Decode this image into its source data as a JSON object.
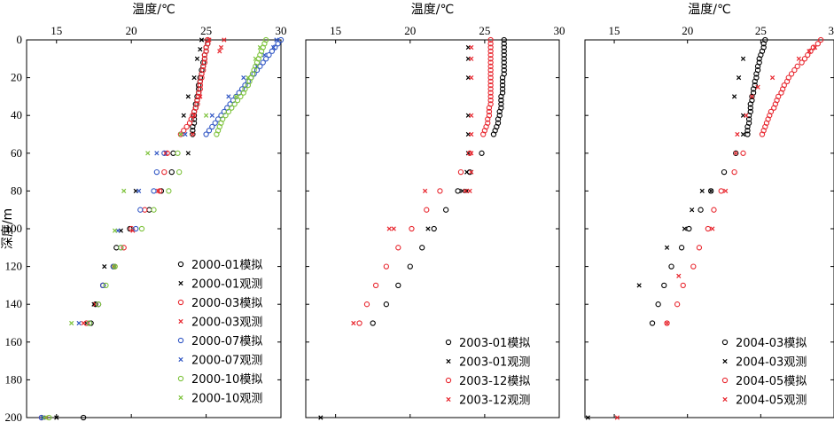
{
  "chart_data": [
    {
      "type": "scatter",
      "xlabel": "温度/℃",
      "ylabel": "深度/m",
      "xlim": [
        13,
        30
      ],
      "ylim": [
        0,
        200
      ],
      "y_reversed": true,
      "x_ticks": [
        "15",
        "20",
        "25",
        "30"
      ],
      "y_ticks": [
        "0",
        "20",
        "40",
        "60",
        "80",
        "100",
        "120",
        "140",
        "160",
        "180",
        "200"
      ],
      "legend_position": "bottom-right",
      "series": [
        {
          "name": "2000-01模拟",
          "marker": "circle",
          "color": "#000000",
          "x": [
            25.1,
            25.1,
            25.0,
            25.0,
            24.9,
            24.9,
            24.8,
            24.8,
            24.7,
            24.7,
            24.6,
            24.6,
            24.5,
            24.5,
            24.5,
            24.4,
            24.4,
            24.3,
            24.3,
            24.2,
            24.2,
            24.2,
            24.2,
            24.1,
            24.1,
            24.1,
            22.8,
            22.7,
            22.0,
            21.2,
            19.9,
            19.0,
            18.8,
            18.1,
            17.6,
            17.3,
            16.8
          ],
          "y": [
            0,
            2,
            4,
            6,
            8,
            10,
            12,
            14,
            16,
            18,
            20,
            22,
            24,
            26,
            28,
            30,
            32,
            34,
            36,
            38,
            40,
            42,
            44,
            46,
            48,
            50,
            60,
            70,
            80,
            90,
            100,
            110,
            120,
            130,
            140,
            150,
            200
          ]
        },
        {
          "name": "2000-01观测",
          "marker": "x",
          "color": "#000000",
          "x": [
            24.7,
            24.6,
            24.4,
            24.2,
            23.8,
            23.5,
            23.3,
            23.8,
            20.3,
            19.3,
            18.2,
            17.5,
            17.0,
            15.0
          ],
          "y": [
            0,
            5,
            10,
            20,
            30,
            40,
            50,
            60,
            80,
            101,
            120,
            140,
            150,
            200
          ]
        },
        {
          "name": "2000-03模拟",
          "marker": "circle",
          "color": "#e8262e",
          "x": [
            25.1,
            25.1,
            25.0,
            25.0,
            24.9,
            24.9,
            24.9,
            24.8,
            24.8,
            24.7,
            24.7,
            24.6,
            24.6,
            24.6,
            24.5,
            24.5,
            24.4,
            24.4,
            24.3,
            24.2,
            24.1,
            24.0,
            23.9,
            23.7,
            23.5,
            23.3,
            22.4,
            22.2,
            21.9,
            20.9,
            20.0,
            19.5,
            18.9,
            18.1,
            17.8,
            17.0,
            14.0
          ],
          "y": [
            0,
            2,
            4,
            6,
            8,
            10,
            12,
            14,
            16,
            18,
            20,
            22,
            24,
            26,
            28,
            30,
            32,
            34,
            36,
            38,
            40,
            42,
            44,
            46,
            48,
            50,
            60,
            70,
            80,
            90,
            100,
            110,
            120,
            130,
            140,
            150,
            200
          ]
        },
        {
          "name": "2000-03观测",
          "marker": "x",
          "color": "#e8262e",
          "x": [
            25.2,
            26.2,
            26.0,
            25.9,
            24.6,
            24.2,
            24.1,
            22.3,
            21.8,
            20.1,
            18.8,
            17.6,
            16.8,
            14.3
          ],
          "y": [
            0,
            0,
            4,
            6,
            30,
            40,
            50,
            60,
            80,
            101,
            120,
            140,
            150,
            200
          ]
        },
        {
          "name": "2000-07模拟",
          "marker": "circle",
          "color": "#3056c4",
          "x": [
            30.0,
            29.8,
            29.6,
            29.4,
            29.2,
            29.0,
            28.8,
            28.6,
            28.4,
            28.2,
            28.0,
            27.8,
            27.6,
            27.4,
            27.2,
            27.0,
            26.8,
            26.6,
            26.4,
            26.2,
            26.0,
            25.8,
            25.6,
            25.4,
            25.2,
            25.0,
            22.2,
            21.7,
            21.5,
            20.6,
            20.3,
            19.3,
            18.8,
            18.1,
            17.8,
            17.2,
            14.0
          ],
          "y": [
            0,
            2,
            4,
            6,
            8,
            10,
            12,
            14,
            16,
            18,
            20,
            22,
            24,
            26,
            28,
            30,
            32,
            34,
            36,
            38,
            40,
            42,
            44,
            46,
            48,
            50,
            60,
            70,
            80,
            90,
            100,
            110,
            120,
            130,
            140,
            150,
            200
          ]
        },
        {
          "name": "2000-07观测",
          "marker": "x",
          "color": "#3056c4",
          "x": [
            29.7,
            29.5,
            28.9,
            28.4,
            27.5,
            26.5,
            25.4,
            23.6,
            21.7,
            20.5,
            19.1,
            16.5,
            14.1
          ],
          "y": [
            0,
            4,
            8,
            14,
            20,
            30,
            40,
            50,
            60,
            80,
            101,
            150,
            200
          ]
        },
        {
          "name": "2000-10模拟",
          "marker": "circle",
          "color": "#7cc23a",
          "x": [
            29.0,
            28.9,
            28.8,
            28.7,
            28.6,
            28.5,
            28.4,
            28.3,
            28.2,
            28.1,
            28.0,
            27.9,
            27.8,
            27.6,
            27.5,
            27.3,
            27.1,
            26.9,
            26.7,
            26.5,
            26.3,
            26.1,
            26.0,
            25.9,
            25.8,
            25.7,
            23.1,
            23.2,
            22.5,
            21.5,
            20.7,
            19.3,
            18.9,
            18.3,
            17.8,
            17.2,
            14.5
          ],
          "y": [
            0,
            2,
            4,
            6,
            8,
            10,
            12,
            14,
            16,
            18,
            20,
            22,
            24,
            26,
            28,
            30,
            32,
            34,
            36,
            38,
            40,
            42,
            44,
            46,
            48,
            50,
            60,
            70,
            80,
            90,
            100,
            110,
            120,
            130,
            140,
            150,
            200
          ]
        },
        {
          "name": "2000-10观测",
          "marker": "x",
          "color": "#7cc23a",
          "x": [
            28.6,
            28.3,
            27.8,
            27.0,
            25.0,
            23.3,
            21.1,
            19.5,
            18.9,
            18.9,
            16.0,
            14.2
          ],
          "y": [
            4,
            10,
            20,
            30,
            40,
            50,
            60,
            80,
            101,
            120,
            150,
            200
          ]
        }
      ]
    },
    {
      "type": "scatter",
      "xlabel": "温度/℃",
      "xlim": [
        13,
        30
      ],
      "ylim": [
        0,
        200
      ],
      "y_reversed": true,
      "x_ticks": [
        "15",
        "20",
        "25",
        "30"
      ],
      "legend_position": "bottom-right",
      "series": [
        {
          "name": "2003-01模拟",
          "marker": "circle",
          "color": "#000000",
          "x": [
            26.3,
            26.3,
            26.3,
            26.3,
            26.3,
            26.3,
            26.3,
            26.3,
            26.3,
            26.3,
            26.2,
            26.2,
            26.2,
            26.2,
            26.2,
            26.1,
            26.1,
            26.1,
            26.1,
            26.0,
            26.0,
            25.9,
            25.9,
            25.8,
            25.7,
            25.6,
            24.8,
            24.0,
            23.2,
            22.4,
            21.6,
            20.8,
            20.0,
            19.2,
            18.4,
            17.5
          ],
          "y": [
            0,
            2,
            4,
            6,
            8,
            10,
            12,
            14,
            16,
            18,
            20,
            22,
            24,
            26,
            28,
            30,
            32,
            34,
            36,
            38,
            40,
            42,
            44,
            46,
            48,
            50,
            60,
            70,
            80,
            90,
            100,
            110,
            120,
            130,
            140,
            150
          ]
        },
        {
          "name": "2003-01观测",
          "marker": "x",
          "color": "#000000",
          "x": [
            23.9,
            23.9,
            23.9,
            23.9,
            23.9,
            23.9,
            23.8,
            23.8,
            23.5,
            21.2,
            14.0
          ],
          "y": [
            4,
            10,
            20,
            40,
            50,
            60,
            70,
            80,
            80,
            100,
            200
          ]
        },
        {
          "name": "2003-12模拟",
          "marker": "circle",
          "color": "#e8262e",
          "x": [
            25.4,
            25.4,
            25.4,
            25.4,
            25.4,
            25.4,
            25.4,
            25.4,
            25.4,
            25.4,
            25.4,
            25.4,
            25.4,
            25.4,
            25.4,
            25.4,
            25.4,
            25.4,
            25.3,
            25.3,
            25.3,
            25.2,
            25.2,
            25.1,
            25.0,
            24.9,
            24.0,
            23.4,
            22.0,
            21.1,
            20.1,
            19.2,
            18.4,
            17.7,
            17.1,
            16.6
          ],
          "y": [
            0,
            2,
            4,
            6,
            8,
            10,
            12,
            14,
            16,
            18,
            20,
            22,
            24,
            26,
            28,
            30,
            32,
            34,
            36,
            38,
            40,
            42,
            44,
            46,
            48,
            50,
            60,
            70,
            80,
            90,
            100,
            110,
            120,
            130,
            140,
            150
          ]
        },
        {
          "name": "2003-12观测",
          "marker": "x",
          "color": "#e8262e",
          "x": [
            24.1,
            24.1,
            24.1,
            24.1,
            24.1,
            24.1,
            24.1,
            24.0,
            23.7,
            21.0,
            18.9,
            18.6,
            16.2
          ],
          "y": [
            4,
            10,
            20,
            40,
            50,
            60,
            70,
            80,
            80,
            80,
            100,
            100,
            150
          ]
        }
      ]
    },
    {
      "type": "scatter",
      "xlabel": "温度/℃",
      "xlim": [
        13,
        30
      ],
      "ylim": [
        0,
        200
      ],
      "y_reversed": true,
      "x_ticks": [
        "15",
        "20",
        "25",
        "30"
      ],
      "legend_position": "bottom-right",
      "series": [
        {
          "name": "2004-03模拟",
          "marker": "circle",
          "color": "#000000",
          "x": [
            25.3,
            25.2,
            25.2,
            25.1,
            25.0,
            24.9,
            24.9,
            24.8,
            24.8,
            24.7,
            24.7,
            24.6,
            24.6,
            24.5,
            24.5,
            24.4,
            24.4,
            24.3,
            24.3,
            24.3,
            24.2,
            24.2,
            24.2,
            24.1,
            24.1,
            24.1,
            23.3,
            22.5,
            21.6,
            20.9,
            20.1,
            19.6,
            18.9,
            18.4,
            18.0,
            17.6
          ],
          "y": [
            0,
            2,
            4,
            6,
            8,
            10,
            12,
            14,
            16,
            18,
            20,
            22,
            24,
            26,
            28,
            30,
            32,
            34,
            36,
            38,
            40,
            42,
            44,
            46,
            48,
            50,
            60,
            70,
            80,
            90,
            100,
            110,
            120,
            130,
            140,
            150
          ]
        },
        {
          "name": "2004-03观测",
          "marker": "x",
          "color": "#000000",
          "x": [
            23.8,
            23.5,
            23.2,
            23.8,
            23.8,
            21.0,
            21.6,
            20.3,
            19.8,
            18.6,
            16.7,
            13.2
          ],
          "y": [
            10,
            20,
            30,
            40,
            50,
            80,
            80,
            90,
            100,
            110,
            130,
            200
          ]
        },
        {
          "name": "2004-05模拟",
          "marker": "circle",
          "color": "#e8262e",
          "x": [
            29.1,
            28.9,
            28.6,
            28.4,
            28.2,
            28.0,
            27.8,
            27.5,
            27.3,
            27.1,
            26.9,
            26.8,
            26.6,
            26.5,
            26.4,
            26.2,
            26.1,
            26.0,
            25.9,
            25.7,
            25.6,
            25.5,
            25.4,
            25.3,
            25.2,
            25.1,
            23.8,
            23.2,
            22.3,
            21.8,
            21.4,
            20.8,
            20.4,
            19.7,
            19.3,
            18.6
          ],
          "y": [
            0,
            2,
            4,
            6,
            8,
            10,
            12,
            14,
            16,
            18,
            20,
            22,
            24,
            26,
            28,
            30,
            32,
            34,
            36,
            38,
            40,
            42,
            44,
            46,
            48,
            50,
            60,
            70,
            80,
            90,
            100,
            110,
            120,
            130,
            140,
            150
          ]
        },
        {
          "name": "2004-05观测",
          "marker": "x",
          "color": "#e8262e",
          "x": [
            28.7,
            28.3,
            27.6,
            25.8,
            24.8,
            24.4,
            24.0,
            23.4,
            23.3,
            22.6,
            21.7,
            19.4,
            18.6,
            15.2
          ],
          "y": [
            4,
            6,
            10,
            20,
            25,
            30,
            40,
            50,
            60,
            80,
            100,
            125,
            150,
            200
          ]
        }
      ]
    }
  ]
}
